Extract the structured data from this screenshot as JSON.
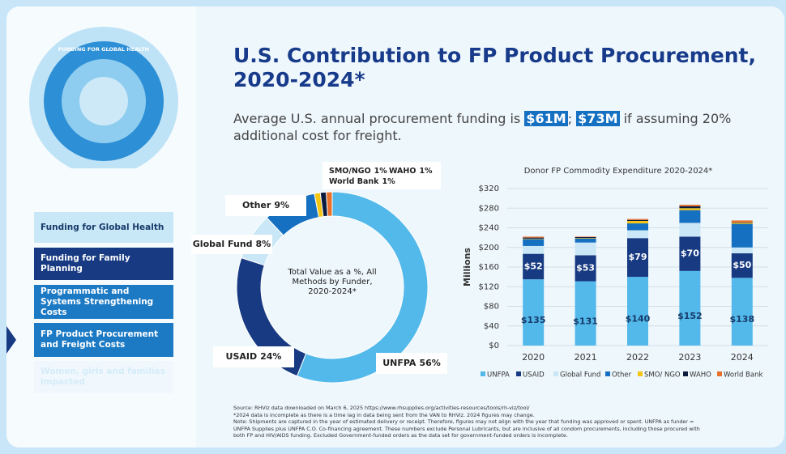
{
  "sidebar": {
    "graphic_title": "FUNDING FOR GLOBAL HEALTH",
    "nav": [
      "Funding for Global Health",
      "Funding for Family Planning",
      "Programmatic and Systems Strengthening Costs",
      "FP Product Procurement and Freight Costs",
      "Women, girls and families impacted"
    ]
  },
  "header": {
    "title": "U.S. Contribution to FP Product Procurement, 2020-2024*",
    "subtitle_pre": "Average U.S. annual procurement funding is",
    "highlight_1": "$61M",
    "subtitle_mid": ";",
    "highlight_2": "$73M",
    "subtitle_post": "if assuming 20% additional cost for freight."
  },
  "chart_data": [
    {
      "type": "donut",
      "annotation": "Total Value as a %, All Methods by Funder, 2020-2024*",
      "categories": [
        "UNFPA",
        "USAID",
        "Global Fund",
        "Other",
        "SMO/NGO",
        "WAHO",
        "World Bank"
      ],
      "values": [
        56,
        24,
        8,
        9,
        1,
        1,
        1
      ],
      "value_labels": [
        "56%",
        "24%",
        "8%",
        "9%",
        "1%",
        "1%",
        "1%"
      ],
      "colors": [
        "#52b9ea",
        "#173a82",
        "#c9e7f6",
        "#1670c2",
        "#f3c515",
        "#0b1c3f",
        "#e8702a"
      ]
    },
    {
      "type": "stacked_bar",
      "title": "Donor FP Commodity Expenditure 2020-2024*",
      "ylabel": "Millions",
      "categories": [
        "2020",
        "2021",
        "2022",
        "2023",
        "2024"
      ],
      "ylim": [
        0,
        320
      ],
      "yticks": [
        {
          "value": 0,
          "label": "$0"
        },
        {
          "value": 40,
          "label": "$40"
        },
        {
          "value": 80,
          "label": "$80"
        },
        {
          "value": 120,
          "label": "$120"
        },
        {
          "value": 160,
          "label": "$160"
        },
        {
          "value": 200,
          "label": "$200"
        },
        {
          "value": 240,
          "label": "$240"
        },
        {
          "value": 280,
          "label": "$280"
        },
        {
          "value": 320,
          "label": "$320"
        }
      ],
      "grid": true,
      "series": [
        {
          "name": "UNFPA",
          "color": "#52b9ea",
          "values": [
            135,
            131,
            140,
            152,
            138
          ],
          "value_labels": [
            "$135",
            "$131",
            "$140",
            "$152",
            "$138"
          ]
        },
        {
          "name": "USAID",
          "color": "#173a82",
          "values": [
            52,
            53,
            79,
            70,
            50
          ],
          "value_labels": [
            "$52",
            "$53",
            "$79",
            "$70",
            "$50"
          ]
        },
        {
          "name": "Global Fund",
          "color": "#c9e7f6",
          "values": [
            16,
            26,
            16,
            28,
            12
          ]
        },
        {
          "name": "Other",
          "color": "#1670c2",
          "values": [
            14,
            8,
            14,
            26,
            48
          ]
        },
        {
          "name": "SMO/ NGO",
          "color": "#f3c515",
          "values": [
            1,
            1,
            5,
            4,
            2
          ]
        },
        {
          "name": "WAHO",
          "color": "#0b1c3f",
          "values": [
            2,
            2,
            2,
            4,
            1
          ]
        },
        {
          "name": "World Bank",
          "color": "#e8702a",
          "values": [
            2,
            1,
            2,
            3,
            4
          ]
        }
      ]
    }
  ],
  "notes": [
    "Source: RHViz data downloaded on March 6, 2025 https://www.rhsupplies.org/activities-resources/tools/rh-viz/tool/",
    "*2024 data is incomplete as there is a time lag in data being sent from the VAN to RHViz. 2024 figures may change.",
    "Note: Shipments are captured in the year of estimated delivery or receipt. Therefore, figures may not align with the year that funding was approved or spent. UNFPA as funder =",
    "UNFPA Supplies plus UNFPA C.O. Co-financing agreement. These numbers exclude Personal Lubricants, but are inclusive of all condom procurements, including those procured with",
    "both FP and HIV/AIDS funding. Excluded Government-funded orders as the data set for government-funded orders is incomplete."
  ]
}
